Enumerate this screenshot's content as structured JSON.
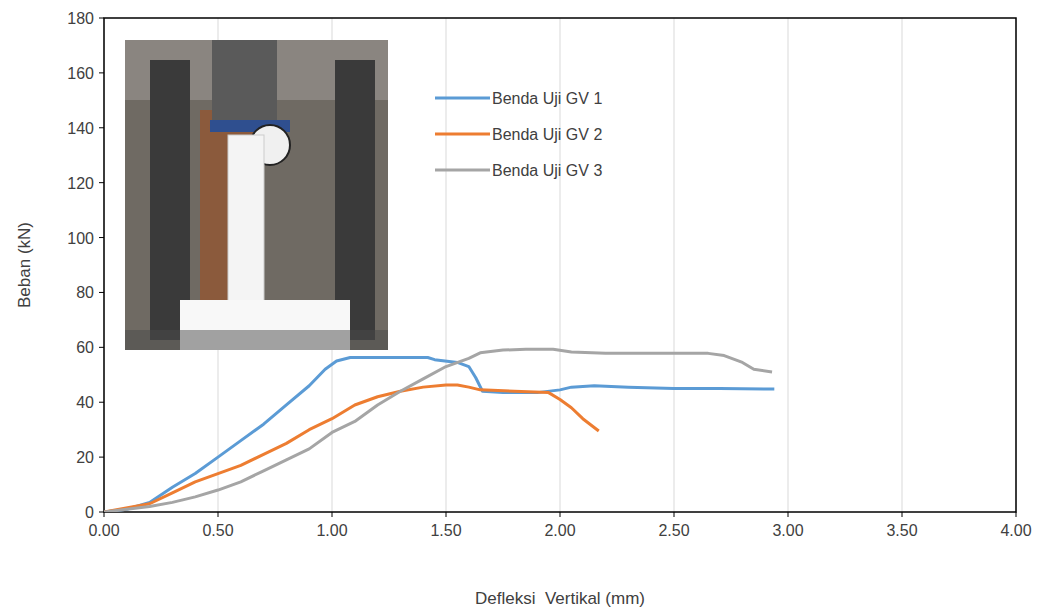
{
  "chart_data": {
    "type": "line",
    "x_label": "Defleksi  Vertikal (mm)",
    "y_label": "Beban (kN)",
    "xlim": [
      0,
      4
    ],
    "ylim": [
      0,
      180
    ],
    "xticks": [
      {
        "value": 0,
        "label": "0.00"
      },
      {
        "value": 0.5,
        "label": "0.50"
      },
      {
        "value": 1,
        "label": "1.00"
      },
      {
        "value": 1.5,
        "label": "1.50"
      },
      {
        "value": 2,
        "label": "2.00"
      },
      {
        "value": 2.5,
        "label": "2.50"
      },
      {
        "value": 3,
        "label": "3.00"
      },
      {
        "value": 3.5,
        "label": "3.50"
      },
      {
        "value": 4,
        "label": "4.00"
      }
    ],
    "yticks": [
      0,
      20,
      40,
      60,
      80,
      100,
      120,
      140,
      160,
      180
    ],
    "grid": true,
    "legend": "top",
    "series": [
      {
        "name": "Benda Uji GV 1",
        "color": "#5b9bd5",
        "x": [
          0,
          0.1,
          0.2,
          0.3,
          0.4,
          0.5,
          0.6,
          0.7,
          0.8,
          0.9,
          0.97,
          1.02,
          1.08,
          1.2,
          1.42,
          1.45,
          1.55,
          1.6,
          1.63,
          1.66,
          1.75,
          1.9,
          2.0,
          2.05,
          2.15,
          2.3,
          2.5,
          2.7,
          2.94
        ],
        "values": [
          0,
          1,
          3.5,
          9,
          14,
          20,
          26,
          32,
          39,
          46,
          52,
          55,
          56.3,
          56.3,
          56.3,
          55.5,
          54.5,
          53,
          49,
          44,
          43.5,
          43.5,
          44.5,
          45.5,
          46,
          45.5,
          45,
          45,
          44.8
        ]
      },
      {
        "name": "Benda Uji GV 2",
        "color": "#ed7d31",
        "x": [
          0,
          0.2,
          0.3,
          0.4,
          0.5,
          0.6,
          0.7,
          0.8,
          0.9,
          1.0,
          1.1,
          1.2,
          1.3,
          1.4,
          1.5,
          1.55,
          1.6,
          1.65,
          1.8,
          1.95,
          2.0,
          2.05,
          2.1,
          2.17
        ],
        "values": [
          0,
          3,
          7,
          11,
          14,
          17,
          21,
          25,
          30,
          34,
          39,
          42,
          44,
          45.5,
          46.3,
          46.3,
          45.5,
          44.5,
          44,
          43.5,
          41,
          38,
          34,
          29.5
        ]
      },
      {
        "name": "Benda Uji GV 3",
        "color": "#a5a5a5",
        "x": [
          0,
          0.2,
          0.3,
          0.4,
          0.5,
          0.6,
          0.7,
          0.8,
          0.9,
          1.0,
          1.1,
          1.2,
          1.3,
          1.4,
          1.5,
          1.6,
          1.65,
          1.75,
          1.85,
          1.97,
          2.05,
          2.2,
          2.5,
          2.65,
          2.72,
          2.8,
          2.85,
          2.93
        ],
        "values": [
          0,
          2,
          3.5,
          5.5,
          8,
          11,
          15,
          19,
          23,
          29,
          33,
          39,
          44,
          48.5,
          53,
          56,
          58,
          59,
          59.3,
          59.3,
          58.3,
          57.8,
          57.8,
          57.8,
          57,
          54.5,
          52,
          51
        ]
      }
    ]
  }
}
